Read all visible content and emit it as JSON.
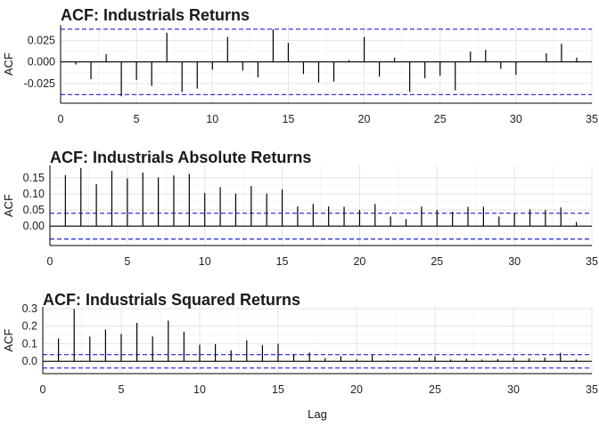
{
  "shared_xlabel": "Lag",
  "chart_data": [
    {
      "type": "bar",
      "title": "ACF: Industrials Returns",
      "ylabel": "ACF",
      "xlim": [
        0,
        35
      ],
      "ylim": [
        -0.048,
        0.043
      ],
      "x_ticks": [
        0,
        5,
        10,
        15,
        20,
        25,
        30,
        35
      ],
      "y_ticks": [
        0.025,
        0.0,
        -0.025
      ],
      "y_tick_labels": [
        "0.025",
        "0.000",
        "-0.025"
      ],
      "ci": 0.038,
      "grid": true,
      "lags": [
        1,
        2,
        3,
        4,
        5,
        6,
        7,
        8,
        9,
        10,
        11,
        12,
        13,
        14,
        15,
        16,
        17,
        18,
        19,
        20,
        21,
        22,
        23,
        24,
        25,
        26,
        27,
        28,
        29,
        30,
        31,
        32,
        33,
        34
      ],
      "values": [
        -0.003,
        -0.02,
        0.009,
        -0.04,
        -0.021,
        -0.028,
        0.034,
        -0.035,
        -0.031,
        -0.009,
        0.029,
        -0.01,
        -0.018,
        0.038,
        0.022,
        -0.014,
        -0.024,
        -0.023,
        0.002,
        0.029,
        -0.017,
        0.005,
        -0.035,
        -0.019,
        -0.016,
        -0.033,
        0.012,
        0.014,
        -0.008,
        -0.015,
        0.0,
        0.01,
        0.021,
        0.005
      ]
    },
    {
      "type": "bar",
      "title": "ACF: Industrials Absolute Returns",
      "ylabel": "ACF",
      "xlim": [
        0,
        35
      ],
      "ylim": [
        -0.06,
        0.188
      ],
      "x_ticks": [
        0,
        5,
        10,
        15,
        20,
        25,
        30,
        35
      ],
      "y_ticks": [
        0.15,
        0.1,
        0.05,
        0.0
      ],
      "y_tick_labels": [
        "0.15",
        "0.10",
        "0.05",
        "0.00"
      ],
      "ci": 0.04,
      "grid": true,
      "lags": [
        1,
        2,
        3,
        4,
        5,
        6,
        7,
        8,
        9,
        10,
        11,
        12,
        13,
        14,
        15,
        16,
        17,
        18,
        19,
        20,
        21,
        22,
        23,
        24,
        25,
        26,
        27,
        28,
        29,
        30,
        31,
        32,
        33,
        34
      ],
      "values": [
        0.158,
        0.18,
        0.13,
        0.171,
        0.148,
        0.166,
        0.151,
        0.157,
        0.162,
        0.103,
        0.121,
        0.101,
        0.124,
        0.101,
        0.114,
        0.061,
        0.069,
        0.061,
        0.06,
        0.05,
        0.069,
        0.03,
        0.022,
        0.061,
        0.05,
        0.045,
        0.06,
        0.06,
        0.03,
        0.04,
        0.052,
        0.05,
        0.058,
        0.013
      ]
    },
    {
      "type": "bar",
      "title": "ACF: Industrials Squared Returns",
      "ylabel": "ACF",
      "xlabel": "Lag",
      "xlim": [
        0,
        35
      ],
      "ylim": [
        -0.07,
        0.31
      ],
      "x_ticks": [
        0,
        5,
        10,
        15,
        20,
        25,
        30,
        35
      ],
      "y_ticks": [
        0.3,
        0.2,
        0.1,
        0.0
      ],
      "y_tick_labels": [
        "0.3",
        "0.2",
        "0.1",
        "0.0"
      ],
      "ci": 0.038,
      "grid": true,
      "lags": [
        1,
        2,
        3,
        4,
        5,
        6,
        7,
        8,
        9,
        10,
        11,
        12,
        13,
        14,
        15,
        16,
        17,
        18,
        19,
        20,
        21,
        22,
        23,
        24,
        25,
        26,
        27,
        28,
        29,
        30,
        31,
        32,
        33,
        34
      ],
      "values": [
        0.13,
        0.298,
        0.141,
        0.181,
        0.156,
        0.219,
        0.142,
        0.232,
        0.168,
        0.095,
        0.098,
        0.063,
        0.12,
        0.093,
        0.1,
        0.04,
        0.05,
        0.018,
        0.03,
        0.012,
        0.035,
        0.005,
        0.003,
        0.022,
        0.03,
        0.01,
        0.016,
        0.01,
        0.013,
        0.02,
        0.017,
        0.022,
        0.048,
        0.01
      ]
    }
  ]
}
